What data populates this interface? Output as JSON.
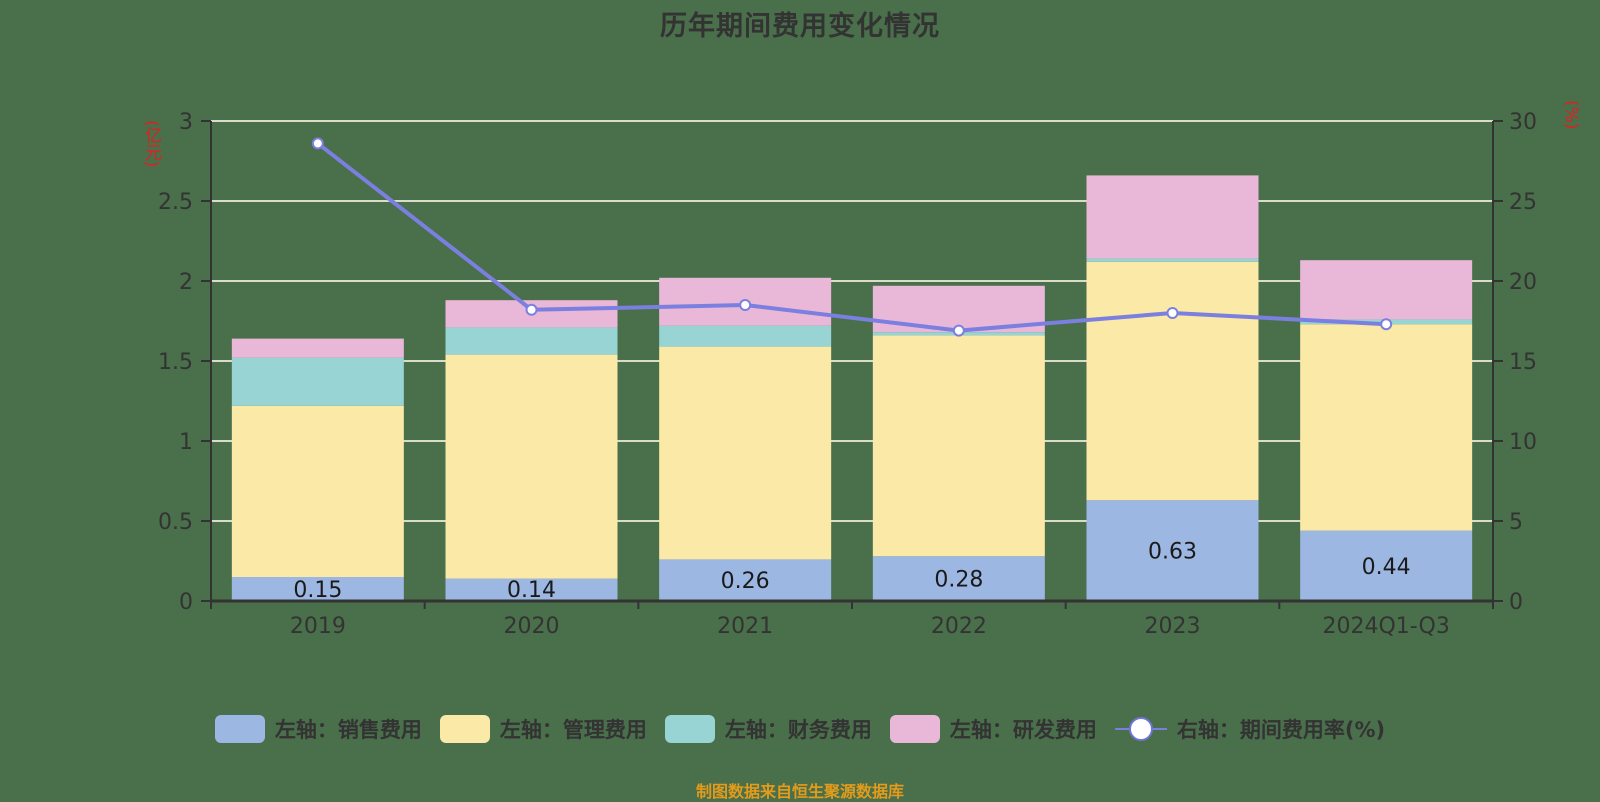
{
  "title": "历年期间费用变化情况",
  "left_unit": "(亿元)",
  "right_unit": "(%)",
  "footer": "制图数据来自恒生聚源数据库",
  "legend": [
    {
      "label": "左轴：销售费用",
      "color": "#9db7e3"
    },
    {
      "label": "左轴：管理费用",
      "color": "#fbe9a8"
    },
    {
      "label": "左轴：财务费用",
      "color": "#97d4d3"
    },
    {
      "label": "左轴：研发费用",
      "color": "#e9b8d9"
    },
    {
      "label": "右轴：期间费用率(%)",
      "color": "#7b7fe0"
    }
  ],
  "chart_data": {
    "type": "bar",
    "title": "历年期间费用变化情况",
    "xlabel": "",
    "ylabel": "亿元",
    "y2label": "%",
    "categories": [
      "2019",
      "2020",
      "2021",
      "2022",
      "2023",
      "2024Q1-Q3"
    ],
    "ylim": [
      0,
      3
    ],
    "yticks": [
      0,
      0.5,
      1,
      1.5,
      2,
      2.5,
      3
    ],
    "y2lim": [
      0,
      30
    ],
    "y2ticks": [
      0,
      5,
      10,
      15,
      20,
      25,
      30
    ],
    "grid": true,
    "legend_position": "bottom",
    "stacked": true,
    "series": [
      {
        "name": "左轴：销售费用",
        "axis": "left",
        "type": "bar",
        "color": "#9db7e3",
        "values": [
          0.15,
          0.14,
          0.26,
          0.28,
          0.63,
          0.44
        ],
        "labels_shown": true
      },
      {
        "name": "左轴：管理费用",
        "axis": "left",
        "type": "bar",
        "color": "#fbe9a8",
        "values": [
          1.07,
          1.4,
          1.33,
          1.38,
          1.49,
          1.29
        ]
      },
      {
        "name": "左轴：财务费用",
        "axis": "left",
        "type": "bar",
        "color": "#97d4d3",
        "values": [
          0.3,
          0.17,
          0.13,
          0.02,
          0.02,
          0.03
        ]
      },
      {
        "name": "左轴：研发费用",
        "axis": "left",
        "type": "bar",
        "color": "#e9b8d9",
        "values": [
          0.12,
          0.17,
          0.3,
          0.29,
          0.52,
          0.37
        ]
      },
      {
        "name": "右轴：期间费用率(%)",
        "axis": "right",
        "type": "line",
        "color": "#7b7fe0",
        "values": [
          28.6,
          18.2,
          18.5,
          16.9,
          18.0,
          17.3
        ]
      }
    ]
  }
}
